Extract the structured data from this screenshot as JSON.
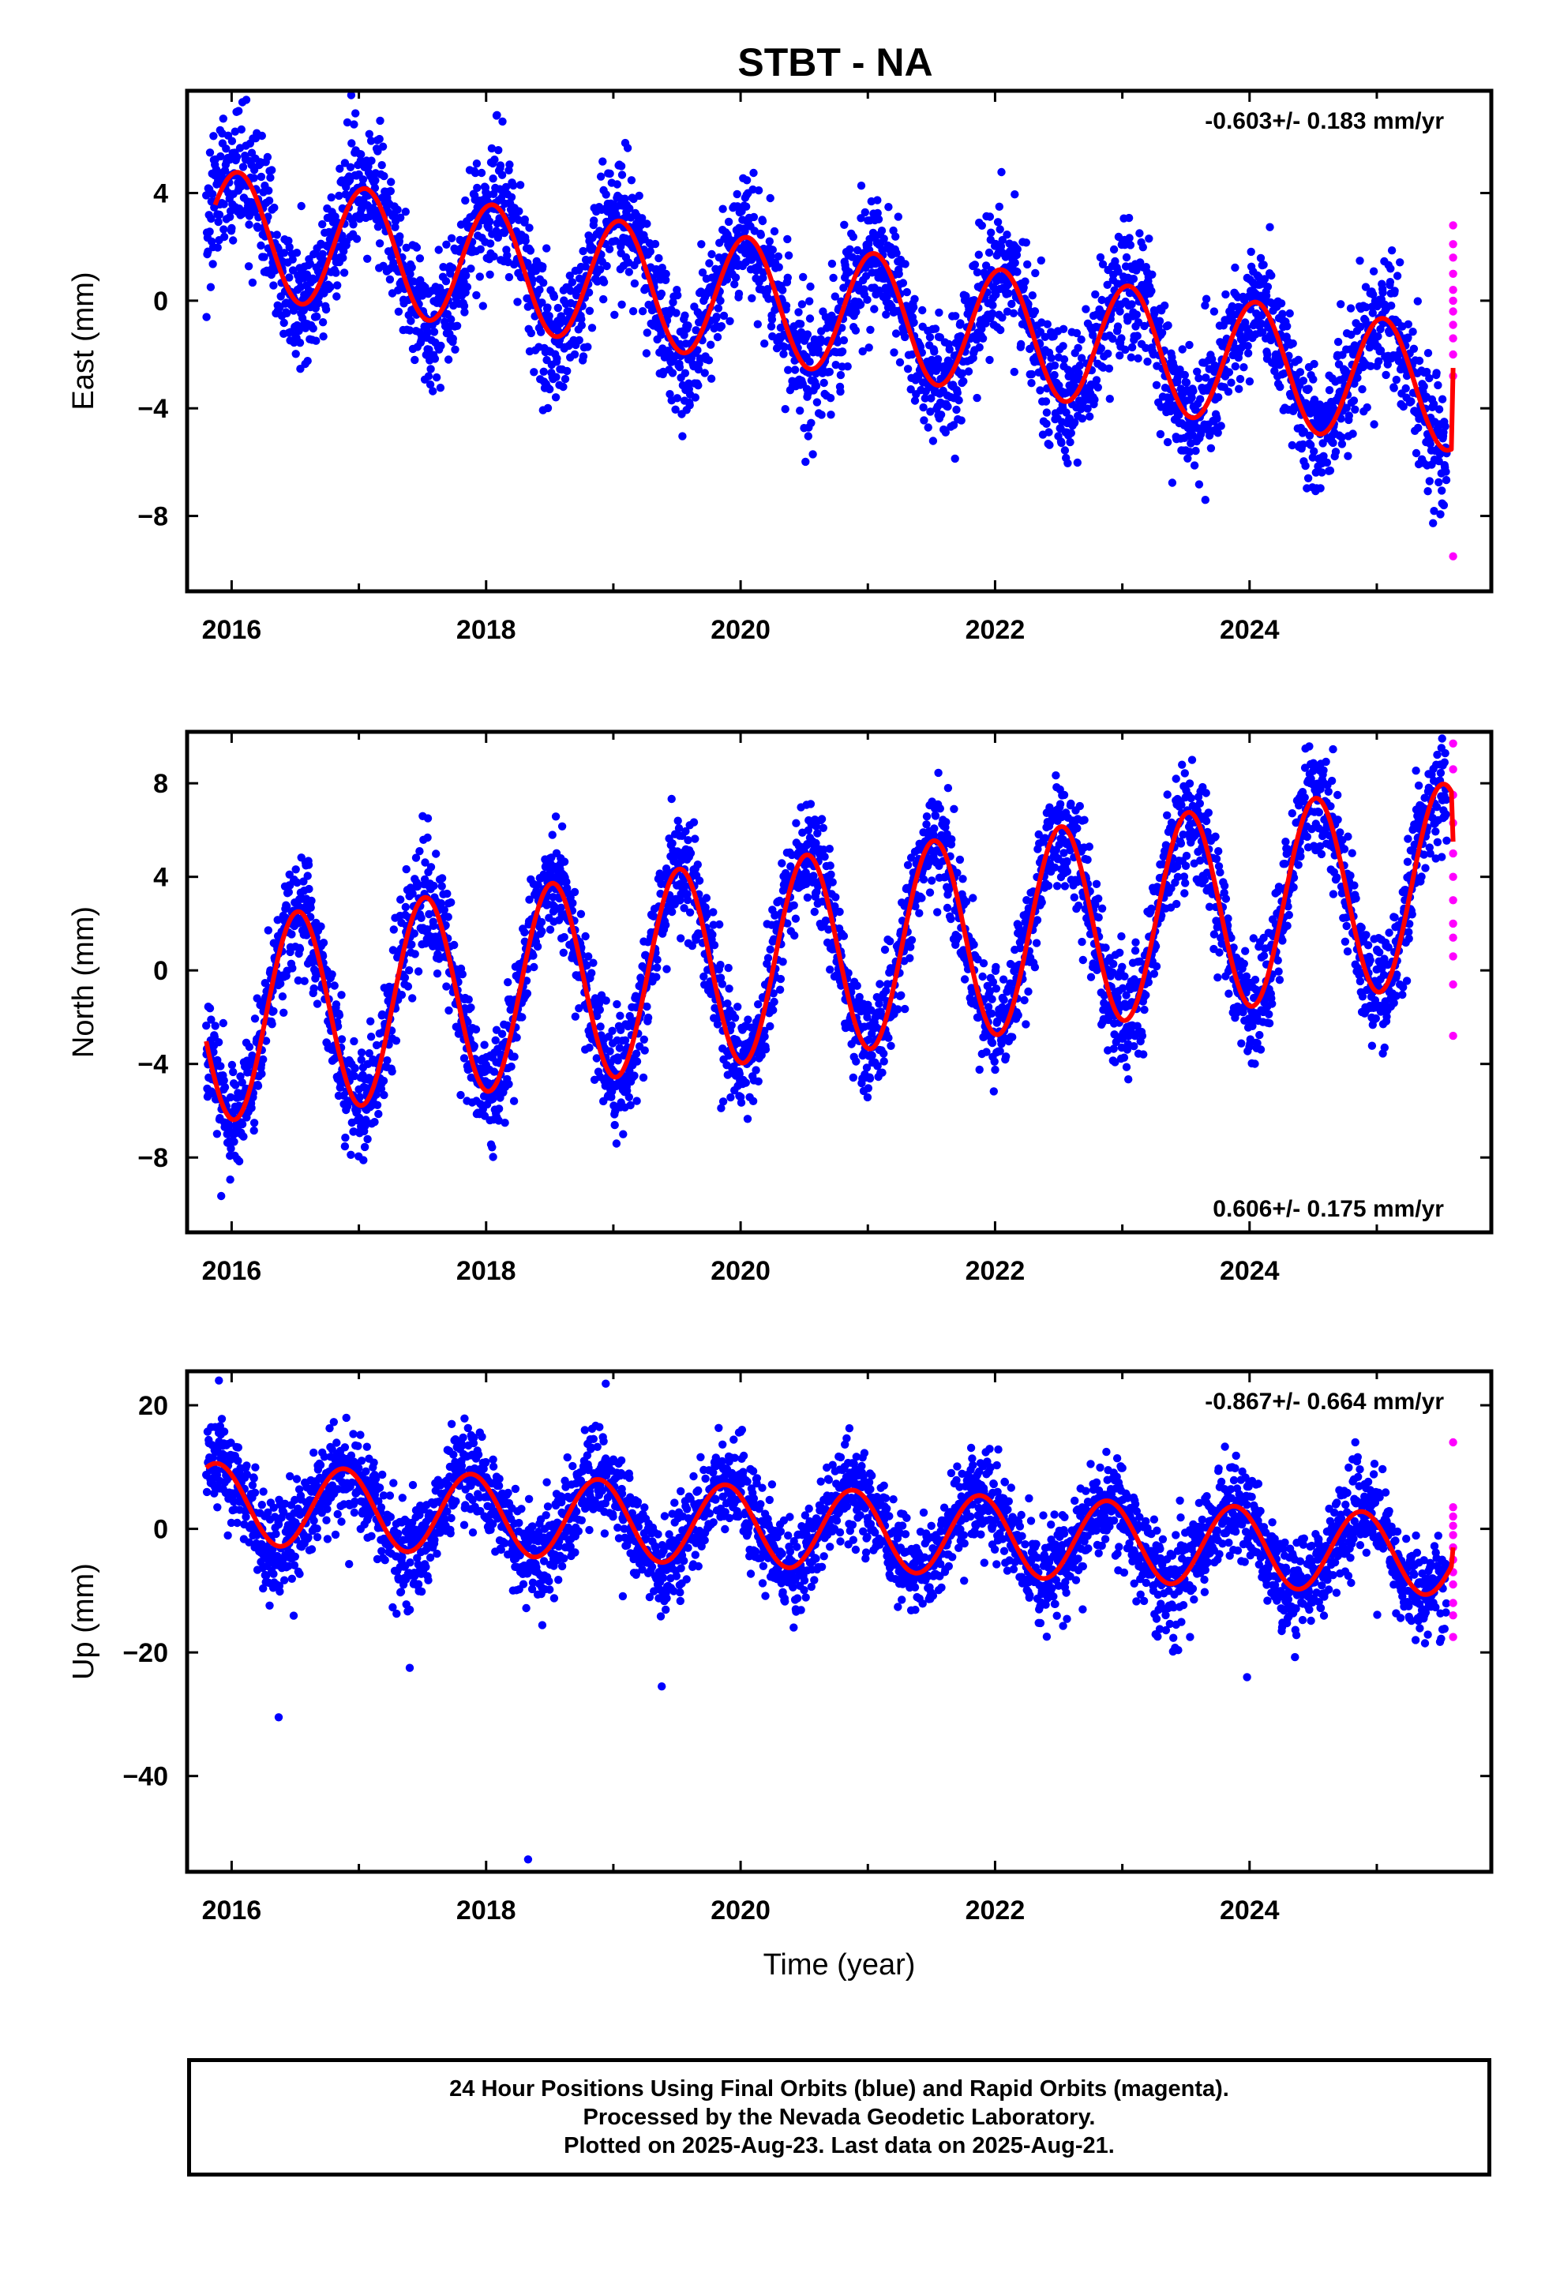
{
  "title": "STBT - NA",
  "colors": {
    "final_orbits": "#0000ff",
    "rapid_orbits": "#ff00ff",
    "model_fit": "#ff0000",
    "frame": "#000000"
  },
  "chart_data": [
    {
      "type": "scatter",
      "component": "East",
      "ylabel": "East (mm)",
      "xlabel": "",
      "rate_label": "-0.603+/- 0.183 mm/yr",
      "rate_label_position": "top-right",
      "xlim": [
        2015.65,
        2025.9
      ],
      "ylim": [
        -10.8,
        7.8
      ],
      "xticks": [
        2016,
        2018,
        2020,
        2022,
        2024
      ],
      "yticks": [
        4,
        0,
        -4,
        -8
      ],
      "ytick_labels": [
        "4",
        "0",
        "−4",
        "−8"
      ],
      "model": {
        "offset": 2.5,
        "rate": -0.603,
        "t0": 2016.0,
        "annual_amp": 2.3,
        "annual_peak": 2016.05,
        "curve_start": 2015.87,
        "curve_end": 2025.6,
        "end_value": -2.5
      },
      "scatter": {
        "start": 2015.8,
        "end": 2025.55,
        "step": 0.00274,
        "noise_sd": 1.2
      },
      "series": [
        {
          "name": "Final Orbits (blue)",
          "color": "#0000ff"
        },
        {
          "name": "Rapid Orbits (magenta)",
          "color": "#ff00ff",
          "x": 2025.6,
          "values": [
            2.8,
            2.1,
            1.6,
            1.0,
            0.4,
            0.0,
            -0.4,
            -0.9,
            -1.4,
            -2.0,
            -2.8,
            -9.5
          ]
        }
      ]
    },
    {
      "type": "scatter",
      "component": "North",
      "ylabel": "North (mm)",
      "xlabel": "",
      "rate_label": "0.606+/- 0.175 mm/yr",
      "rate_label_position": "bottom-right",
      "xlim": [
        2015.65,
        2025.9
      ],
      "ylim": [
        -11.2,
        10.2
      ],
      "xticks": [
        2016,
        2018,
        2020,
        2022,
        2024
      ],
      "yticks": [
        8,
        4,
        0,
        -4,
        -8
      ],
      "ytick_labels": [
        "8",
        "4",
        "0",
        "−4",
        "−8"
      ],
      "model": {
        "offset": -2.1,
        "rate": 0.606,
        "t0": 2016.0,
        "annual_amp": 4.3,
        "annual_peak": 2016.52,
        "curve_start": 2015.8,
        "curve_end": 2025.6,
        "end_value": 5.5
      },
      "scatter": {
        "start": 2015.8,
        "end": 2025.55,
        "step": 0.00274,
        "noise_sd": 1.2
      },
      "series": [
        {
          "name": "Final Orbits (blue)",
          "color": "#0000ff"
        },
        {
          "name": "Rapid Orbits (magenta)",
          "color": "#ff00ff",
          "x": 2025.6,
          "values": [
            9.7,
            8.6,
            7.5,
            6.3,
            5.0,
            4.0,
            3.0,
            2.0,
            1.4,
            0.6,
            -0.6,
            -2.8
          ]
        }
      ]
    },
    {
      "type": "scatter",
      "component": "Up",
      "ylabel": "Up (mm)",
      "xlabel": "Time (year)",
      "rate_label": "-0.867+/- 0.664 mm/yr",
      "rate_label_position": "top-right",
      "xlim": [
        2015.65,
        2025.9
      ],
      "ylim": [
        -55.5,
        25.5
      ],
      "xticks": [
        2016,
        2018,
        2020,
        2022,
        2024
      ],
      "yticks": [
        20,
        0,
        -20,
        -40
      ],
      "ytick_labels": [
        "20",
        "0",
        "−20",
        "−40"
      ],
      "model": {
        "offset": 4.0,
        "rate": -0.867,
        "t0": 2016.0,
        "annual_amp": 6.5,
        "annual_peak": 2015.88,
        "curve_start": 2015.8,
        "curve_end": 2025.6,
        "end_value": -3.0
      },
      "scatter": {
        "start": 2015.8,
        "end": 2025.55,
        "step": 0.00274,
        "noise_sd": 3.8
      },
      "outliers": [
        {
          "x": 2016.37,
          "y": -30.5
        },
        {
          "x": 2018.33,
          "y": -53.5
        },
        {
          "x": 2019.38,
          "y": -25.5
        },
        {
          "x": 2017.4,
          "y": -22.5
        },
        {
          "x": 2023.98,
          "y": -24.0
        },
        {
          "x": 2015.9,
          "y": 24.0
        },
        {
          "x": 2018.94,
          "y": 23.5
        }
      ],
      "series": [
        {
          "name": "Final Orbits (blue)",
          "color": "#0000ff"
        },
        {
          "name": "Rapid Orbits (magenta)",
          "color": "#ff00ff",
          "x": 2025.6,
          "values": [
            14.0,
            3.5,
            2.0,
            0.5,
            -1.0,
            -3.0,
            -5.0,
            -7.0,
            -9.0,
            -12.0,
            -14.0,
            -17.5
          ]
        }
      ]
    }
  ],
  "footer": {
    "line1": "24 Hour Positions Using Final Orbits (blue) and Rapid Orbits (magenta).",
    "line2": "Processed by the Nevada Geodetic Laboratory.",
    "line3": "Plotted on 2025-Aug-23. Last data on 2025-Aug-21."
  }
}
